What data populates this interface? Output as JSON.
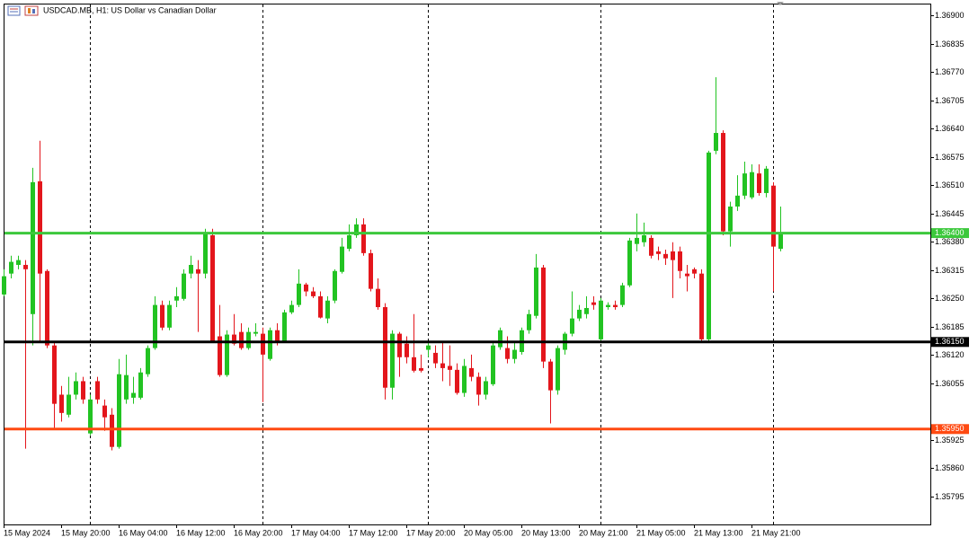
{
  "chart_data": {
    "type": "candlestick",
    "title": "USDCAD.MB, H1: US Dollar vs Canadian Dollar",
    "up_color": "#22c322",
    "down_color": "#e3161c",
    "categories": [
      "15 May 2024",
      null,
      null,
      null,
      null,
      null,
      null,
      null,
      "15 May 20:00",
      null,
      null,
      null,
      null,
      null,
      null,
      null,
      "16 May 04:00",
      null,
      null,
      null,
      null,
      null,
      null,
      null,
      "16 May 12:00",
      null,
      null,
      null,
      null,
      null,
      null,
      null,
      "16 May 20:00",
      null,
      null,
      null,
      null,
      null,
      null,
      null,
      "17 May 04:00",
      null,
      null,
      null,
      null,
      null,
      null,
      null,
      "17 May 12:00",
      null,
      null,
      null,
      null,
      null,
      null,
      null,
      "17 May 20:00",
      null,
      null,
      null,
      null,
      null,
      null,
      null,
      "20 May 05:00",
      null,
      null,
      null,
      null,
      null,
      null,
      null,
      "20 May 13:00",
      null,
      null,
      null,
      null,
      null,
      null,
      null,
      "20 May 21:00",
      null,
      null,
      null,
      null,
      null,
      null,
      null,
      "21 May 05:00",
      null,
      null,
      null,
      null,
      null,
      null,
      null,
      "21 May 13:00",
      null,
      null,
      null,
      null,
      null,
      null,
      null,
      "21 May 21:00",
      null,
      null,
      null,
      null
    ],
    "open": [
      1.36259,
      1.36307,
      1.36327,
      1.36327,
      1.36214,
      1.36519,
      1.36313,
      1.36142,
      1.36029,
      1.35983,
      1.36029,
      1.3606,
      1.3594,
      1.3606,
      1.36004,
      1.35983,
      1.35909,
      1.36018,
      1.36022,
      1.36022,
      1.36076,
      1.36136,
      1.36235,
      1.36183,
      1.36245,
      1.36249,
      1.36307,
      1.36317,
      1.36307,
      1.36395,
      1.36163,
      1.36074,
      1.36167,
      1.36173,
      1.36136,
      1.36169,
      1.36169,
      1.36111,
      1.36177,
      1.36152,
      1.36218,
      1.36235,
      1.36282,
      1.36266,
      1.36255,
      1.36204,
      1.36245,
      1.36311,
      1.36364,
      1.36395,
      1.3642,
      1.36354,
      1.36272,
      1.3623,
      1.36045,
      1.36169,
      1.36146,
      1.36115,
      1.3609,
      1.36132,
      1.36125,
      1.36101,
      1.36095,
      1.36086,
      1.36033,
      1.3609,
      1.3607,
      1.36029,
      1.36053,
      1.36138,
      1.36136,
      1.36111,
      1.36127,
      1.36177,
      1.3621,
      1.36321,
      1.36105,
      1.36039,
      1.36132,
      1.36169,
      1.36204,
      1.36214,
      1.36241,
      1.36156,
      1.3623,
      1.36235,
      1.36235,
      1.3628,
      1.36375,
      1.36379,
      1.36389,
      1.36358,
      1.36352,
      1.36358,
      1.36358,
      1.36307,
      1.36317,
      1.36307,
      1.36156,
      1.36589,
      1.3663,
      1.36404,
      1.36461,
      1.36486,
      1.36482,
      1.36537,
      1.36492,
      1.36509,
      1.36364
    ],
    "high": [
      1.36317,
      1.36348,
      1.36348,
      1.36338,
      1.3655,
      1.36612,
      1.36317,
      1.36152,
      1.36049,
      1.3607,
      1.3608,
      1.3607,
      1.36029,
      1.3607,
      1.36018,
      1.35998,
      1.36111,
      1.36121,
      1.3607,
      1.3609,
      1.36142,
      1.36255,
      1.36245,
      1.36245,
      1.36276,
      1.36317,
      1.36348,
      1.36338,
      1.3641,
      1.3641,
      1.36235,
      1.36177,
      1.36214,
      1.36193,
      1.36183,
      1.36193,
      1.36183,
      1.36183,
      1.36193,
      1.36224,
      1.36245,
      1.36317,
      1.36286,
      1.36276,
      1.36266,
      1.36255,
      1.36317,
      1.36389,
      1.3642,
      1.36434,
      1.36434,
      1.36362,
      1.36296,
      1.36239,
      1.36177,
      1.36173,
      1.36163,
      1.36214,
      1.36121,
      1.36148,
      1.36142,
      1.36152,
      1.36142,
      1.36101,
      1.36111,
      1.36121,
      1.3608,
      1.3607,
      1.36152,
      1.36183,
      1.36163,
      1.36152,
      1.36183,
      1.36224,
      1.36352,
      1.36327,
      1.36111,
      1.36142,
      1.36173,
      1.36266,
      1.36235,
      1.36255,
      1.36255,
      1.36251,
      1.36241,
      1.36245,
      1.36286,
      1.36389,
      1.36445,
      1.36424,
      1.36395,
      1.36369,
      1.36362,
      1.36379,
      1.36369,
      1.36327,
      1.36321,
      1.36317,
      1.36589,
      1.36758,
      1.36636,
      1.36472,
      1.36533,
      1.36564,
      1.36558,
      1.36558,
      1.36554,
      1.36517,
      1.36461
    ],
    "low": [
      1.36255,
      1.36296,
      1.36317,
      1.35905,
      1.36142,
      1.36152,
      1.36136,
      1.3595,
      1.35967,
      1.35977,
      1.36018,
      1.36008,
      1.35936,
      1.36008,
      1.35946,
      1.35901,
      1.35905,
      1.36008,
      1.36008,
      1.36018,
      1.3607,
      1.36132,
      1.36177,
      1.36177,
      1.3623,
      1.36245,
      1.36296,
      1.36173,
      1.36296,
      1.36152,
      1.3607,
      1.3607,
      1.36142,
      1.36132,
      1.36132,
      1.36163,
      1.36012,
      1.36107,
      1.36142,
      1.36148,
      1.36214,
      1.3623,
      1.36255,
      1.36251,
      1.36204,
      1.36193,
      1.36239,
      1.36307,
      1.36358,
      1.36389,
      1.36348,
      1.36266,
      1.36224,
      1.36018,
      1.36018,
      1.3607,
      1.36101,
      1.3608,
      1.3608,
      1.36115,
      1.3609,
      1.3606,
      1.36049,
      1.36029,
      1.36024,
      1.3606,
      1.36004,
      1.36018,
      1.36049,
      1.36132,
      1.36101,
      1.36101,
      1.36121,
      1.36169,
      1.36204,
      1.3609,
      1.35963,
      1.36029,
      1.36121,
      1.36163,
      1.36198,
      1.36204,
      1.36224,
      1.36152,
      1.36224,
      1.36224,
      1.3623,
      1.36276,
      1.36358,
      1.36369,
      1.36342,
      1.36338,
      1.36327,
      1.36251,
      1.36296,
      1.36266,
      1.36296,
      1.36152,
      1.36152,
      1.36581,
      1.36395,
      1.36369,
      1.36451,
      1.36478,
      1.36478,
      1.36486,
      1.36482,
      1.36266,
      1.36358
    ],
    "close": [
      1.36301,
      1.36334,
      1.36338,
      1.36317,
      1.36517,
      1.36307,
      1.36142,
      1.36008,
      1.35987,
      1.36029,
      1.3606,
      1.36018,
      1.36018,
      1.36018,
      1.35977,
      1.35909,
      1.36076,
      1.36074,
      1.36033,
      1.3608,
      1.36136,
      1.36235,
      1.36183,
      1.36235,
      1.36255,
      1.36307,
      1.36327,
      1.36307,
      1.36399,
      1.36152,
      1.36074,
      1.36167,
      1.36146,
      1.36136,
      1.36173,
      1.36173,
      1.36121,
      1.36177,
      1.36152,
      1.36218,
      1.36235,
      1.36284,
      1.36266,
      1.36255,
      1.36206,
      1.36245,
      1.36313,
      1.36369,
      1.36395,
      1.3642,
      1.36354,
      1.36272,
      1.3623,
      1.36045,
      1.36169,
      1.36115,
      1.36115,
      1.36084,
      1.36084,
      1.36142,
      1.36101,
      1.3609,
      1.36086,
      1.36033,
      1.36095,
      1.3607,
      1.36029,
      1.3606,
      1.36142,
      1.36177,
      1.36111,
      1.36132,
      1.36177,
      1.36214,
      1.36321,
      1.36105,
      1.36039,
      1.36136,
      1.36169,
      1.36204,
      1.36224,
      1.36228,
      1.36235,
      1.36245,
      1.36235,
      1.3623,
      1.3628,
      1.36383,
      1.36389,
      1.36395,
      1.36348,
      1.36352,
      1.36342,
      1.36338,
      1.36313,
      1.36301,
      1.36307,
      1.36156,
      1.36585,
      1.3663,
      1.36404,
      1.36461,
      1.36486,
      1.36537,
      1.3654,
      1.36492,
      1.36548,
      1.36369,
      1.36399
    ],
    "ylim": [
      1.35731,
      1.36927
    ],
    "yticks": [
      {
        "value": 1.35795,
        "label": "1.35795"
      },
      {
        "value": 1.3586,
        "label": "1.35860"
      },
      {
        "value": 1.35925,
        "label": "1.35925"
      },
      {
        "value": 1.36055,
        "label": "1.36055"
      },
      {
        "value": 1.3612,
        "label": "1.36120"
      },
      {
        "value": 1.36185,
        "label": "1.36185"
      },
      {
        "value": 1.3625,
        "label": "1.36250"
      },
      {
        "value": 1.36315,
        "label": "1.36315"
      },
      {
        "value": 1.3638,
        "label": "1.36380"
      },
      {
        "value": 1.36445,
        "label": "1.36445"
      },
      {
        "value": 1.3651,
        "label": "1.36510"
      },
      {
        "value": 1.36575,
        "label": "1.36575"
      },
      {
        "value": 1.3664,
        "label": "1.36640"
      },
      {
        "value": 1.36705,
        "label": "1.36705"
      },
      {
        "value": 1.3677,
        "label": "1.36770"
      },
      {
        "value": 1.36835,
        "label": "1.36835"
      },
      {
        "value": 1.369,
        "label": "1.36900"
      }
    ],
    "levels": [
      {
        "value": 1.364,
        "label": "1.36400",
        "color": "#3cc83c"
      },
      {
        "value": 1.3615,
        "label": "1.36150",
        "color": "#000000"
      },
      {
        "value": 1.3595,
        "label": "1.35950",
        "color": "#ff4a12"
      }
    ]
  }
}
